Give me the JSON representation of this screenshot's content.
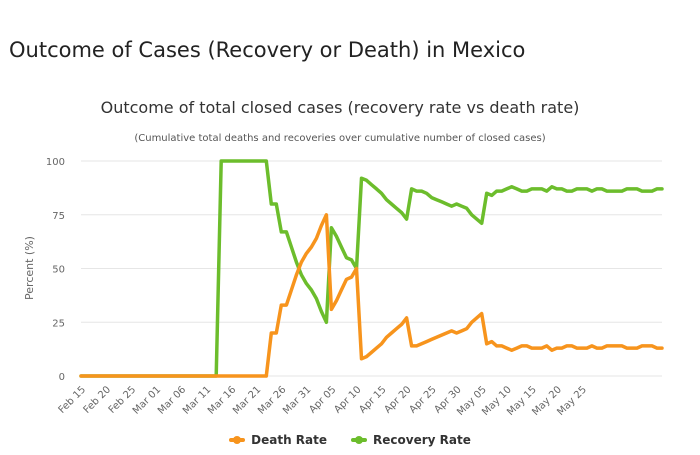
{
  "page": {
    "heading": "Outcome of Cases (Recovery or Death) in Mexico"
  },
  "chart_data": {
    "type": "line",
    "title": "Outcome of total closed cases (recovery rate vs death rate)",
    "subtitle": "(Cumulative total deaths and recoveries over cumulative number of closed cases)",
    "xlabel": "",
    "ylabel": "Percent (%)",
    "ylim": [
      0,
      100
    ],
    "yticks": [
      0,
      25,
      50,
      75,
      100
    ],
    "grid": true,
    "legend_position": "bottom",
    "x_tick_labels": [
      "Feb 15",
      "Feb 20",
      "Feb 25",
      "Mar 01",
      "Mar 06",
      "Mar 11",
      "Mar 16",
      "Mar 21",
      "Mar 26",
      "Mar 31",
      "Apr 05",
      "Apr 10",
      "Apr 15",
      "Apr 20",
      "Apr 25",
      "Apr 30",
      "May 05",
      "May 10",
      "May 15",
      "May 20",
      "May 25"
    ],
    "tick_every": 5,
    "series": [
      {
        "name": "Death Rate",
        "color": "#f7941d",
        "values": [
          0,
          0,
          0,
          0,
          0,
          0,
          0,
          0,
          0,
          0,
          0,
          0,
          0,
          0,
          0,
          0,
          0,
          0,
          0,
          0,
          0,
          0,
          0,
          0,
          0,
          0,
          0,
          0,
          0,
          0,
          0,
          0,
          0,
          0,
          0,
          0,
          0,
          0,
          20,
          20,
          33,
          33,
          40,
          47,
          53,
          57,
          60,
          64,
          70,
          75,
          31,
          35,
          40,
          45,
          46,
          50,
          8,
          9,
          11,
          13,
          15,
          18,
          20,
          22,
          24,
          27,
          14,
          14,
          15,
          16,
          17,
          18,
          19,
          20,
          21,
          20,
          21,
          22,
          25,
          27,
          29,
          15,
          16,
          14,
          14,
          13,
          12,
          13,
          14,
          14,
          13,
          13,
          13,
          14,
          12,
          13,
          13,
          14,
          14,
          13,
          13,
          13,
          14,
          13,
          13,
          14,
          14,
          14,
          14,
          13,
          13,
          13,
          14,
          14,
          14,
          13,
          13
        ],
        "dashed_segments": []
      },
      {
        "name": "Recovery Rate",
        "color": "#6cbd2c",
        "values": [
          0,
          0,
          0,
          0,
          0,
          0,
          0,
          0,
          0,
          0,
          0,
          0,
          0,
          0,
          0,
          0,
          0,
          0,
          0,
          0,
          0,
          0,
          0,
          0,
          0,
          0,
          0,
          0,
          100,
          100,
          100,
          100,
          100,
          100,
          100,
          100,
          100,
          100,
          80,
          80,
          67,
          67,
          60,
          53,
          47,
          43,
          40,
          36,
          30,
          25,
          69,
          65,
          60,
          55,
          54,
          50,
          92,
          91,
          89,
          87,
          85,
          82,
          80,
          78,
          76,
          73,
          87,
          86,
          86,
          85,
          83,
          82,
          81,
          80,
          79,
          80,
          79,
          78,
          75,
          73,
          71,
          85,
          84,
          86,
          86,
          87,
          88,
          87,
          86,
          86,
          87,
          87,
          87,
          86,
          88,
          87,
          87,
          86,
          86,
          87,
          87,
          87,
          86,
          87,
          87,
          86,
          86,
          86,
          86,
          87,
          87,
          87,
          86,
          86,
          86,
          87,
          87
        ]
      }
    ]
  },
  "legend": {
    "items": [
      {
        "label": "Death Rate",
        "color": "#f7941d"
      },
      {
        "label": "Recovery Rate",
        "color": "#6cbd2c"
      }
    ]
  }
}
